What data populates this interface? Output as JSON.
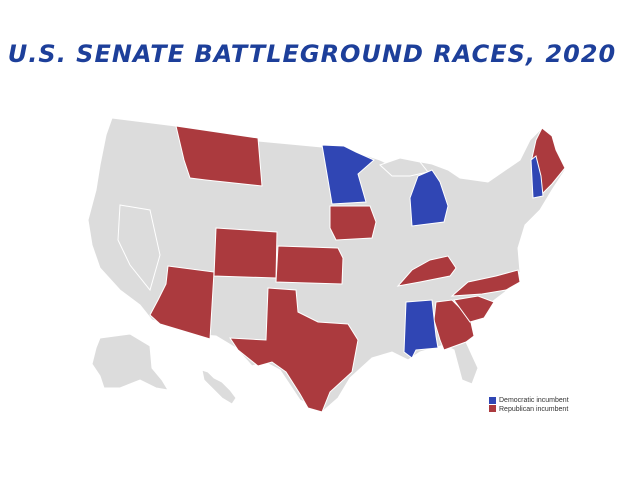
{
  "title": "U.S. SENATE BATTLEGROUND RACES, 2020",
  "colors": {
    "democratic": "#3046b4",
    "republican": "#ab3a3e",
    "other": "#dcdcdc",
    "border": "#ffffff",
    "title": "#1d3f9a"
  },
  "legend": {
    "democratic_label": "Democratic incumbent",
    "republican_label": "Republican incumbent"
  },
  "states": [
    {
      "name": "Montana",
      "status": "republican"
    },
    {
      "name": "Colorado",
      "status": "republican"
    },
    {
      "name": "Arizona",
      "status": "republican"
    },
    {
      "name": "Kansas",
      "status": "republican"
    },
    {
      "name": "Texas",
      "status": "republican"
    },
    {
      "name": "Iowa",
      "status": "republican"
    },
    {
      "name": "Kentucky",
      "status": "republican"
    },
    {
      "name": "Georgia",
      "status": "republican"
    },
    {
      "name": "South Carolina",
      "status": "republican"
    },
    {
      "name": "North Carolina",
      "status": "republican"
    },
    {
      "name": "Maine",
      "status": "republican"
    },
    {
      "name": "Minnesota",
      "status": "democratic"
    },
    {
      "name": "Michigan",
      "status": "democratic"
    },
    {
      "name": "New Hampshire",
      "status": "democratic"
    },
    {
      "name": "Alabama",
      "status": "democratic"
    }
  ]
}
